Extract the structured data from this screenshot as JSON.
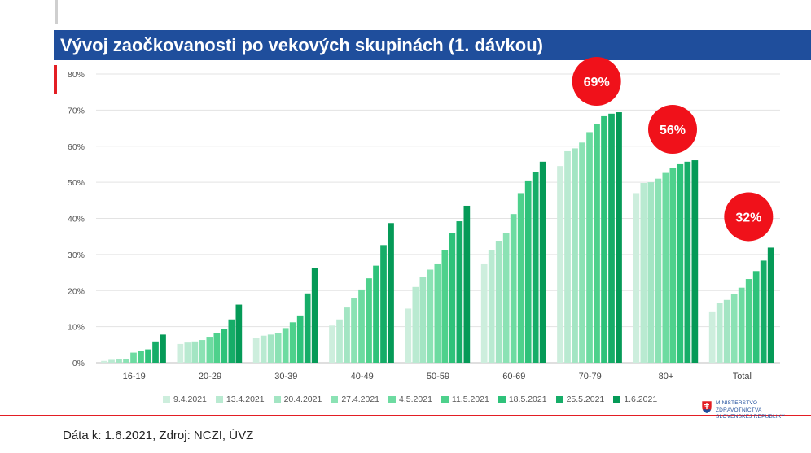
{
  "title": "Vývoj zaočkovanosti po vekových skupinách (1. dávkou)",
  "source": "Dáta k: 1.6.2021, Zdroj: NCZI, ÚVZ",
  "ministry": {
    "line1": "MINISTERSTVO",
    "line2": "ZDRAVOTNÍCTVA",
    "line3": "SLOVENSKEJ REPUBLIKY"
  },
  "colors": {
    "title_bar": "#1f4e9c",
    "accent_red": "#e31e24",
    "series": [
      "#cdeedd",
      "#b9ead1",
      "#a3e5c3",
      "#8be2b4",
      "#6ddba1",
      "#4ed18c",
      "#2ec27a",
      "#16ad68",
      "#059a57"
    ]
  },
  "chart_data": {
    "type": "bar",
    "title": "Vývoj zaočkovanosti po vekových skupinách (1. dávkou)",
    "categories": [
      "16-19",
      "20-29",
      "30-39",
      "40-49",
      "50-59",
      "60-69",
      "70-79",
      "80+",
      "Total"
    ],
    "y_ticks": [
      "0%",
      "10%",
      "20%",
      "30%",
      "40%",
      "50%",
      "60%",
      "70%",
      "80%"
    ],
    "ylim": [
      0,
      80
    ],
    "grid": true,
    "legend_position": "bottom",
    "series": [
      {
        "name": "9.4.2021",
        "values": [
          0.5,
          5.2,
          6.8,
          10.3,
          15.0,
          27.5,
          54.5,
          47.0,
          14.0
        ]
      },
      {
        "name": "13.4.2021",
        "values": [
          0.8,
          5.6,
          7.5,
          12.0,
          21.0,
          31.3,
          58.6,
          49.8,
          16.5
        ]
      },
      {
        "name": "20.4.2021",
        "values": [
          0.9,
          5.9,
          7.8,
          15.3,
          23.8,
          33.8,
          59.4,
          50.0,
          17.4
        ]
      },
      {
        "name": "27.4.2021",
        "values": [
          1.0,
          6.3,
          8.3,
          17.8,
          25.8,
          36.0,
          61.0,
          51.0,
          19.0
        ]
      },
      {
        "name": "4.5.2021",
        "values": [
          2.8,
          7.2,
          9.6,
          20.3,
          27.5,
          41.2,
          63.9,
          52.6,
          20.8
        ]
      },
      {
        "name": "11.5.2021",
        "values": [
          3.2,
          8.2,
          11.2,
          23.4,
          31.2,
          47.0,
          66.1,
          54.0,
          23.2
        ]
      },
      {
        "name": "18.5.2021",
        "values": [
          3.7,
          9.3,
          13.1,
          26.9,
          35.9,
          50.5,
          68.3,
          55.0,
          25.4
        ]
      },
      {
        "name": "25.5.2021",
        "values": [
          5.9,
          12.0,
          19.2,
          32.6,
          39.2,
          52.9,
          69.0,
          55.7,
          28.3
        ]
      },
      {
        "name": "1.6.2021",
        "values": [
          7.8,
          16.1,
          26.3,
          38.7,
          43.5,
          55.7,
          69.4,
          56.1,
          31.9
        ]
      }
    ],
    "annotations": [
      {
        "category": "70-79",
        "label": "69%"
      },
      {
        "category": "80+",
        "label": "56%"
      },
      {
        "category": "Total",
        "label": "32%"
      }
    ]
  }
}
